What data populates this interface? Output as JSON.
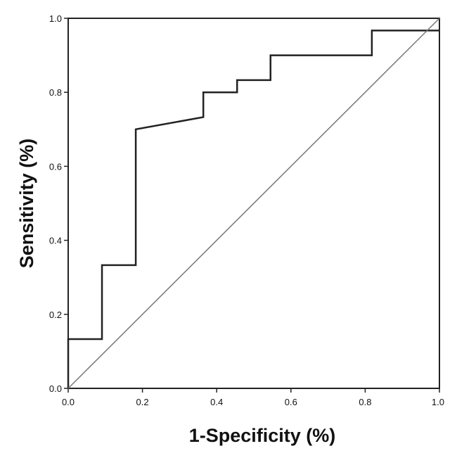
{
  "chart_data": {
    "type": "line",
    "title": "",
    "xlabel": "1-Specificity (%)",
    "ylabel": "Sensitivity (%)",
    "xlim": [
      0,
      1
    ],
    "ylim": [
      0,
      1
    ],
    "x_ticks": [
      "0.0",
      "0.2",
      "0.4",
      "0.6",
      "0.8",
      "1.0"
    ],
    "y_ticks": [
      "0.0",
      "0.2",
      "0.4",
      "0.6",
      "0.8",
      "1.0"
    ],
    "grid": false,
    "legend": "none",
    "series": [
      {
        "x": [
          0.0,
          0.0,
          0.091,
          0.091,
          0.182,
          0.182,
          0.364,
          0.364,
          0.455,
          0.455,
          0.545,
          0.545,
          0.818,
          0.818,
          1.0
        ],
        "y": [
          0.0,
          0.133,
          0.133,
          0.333,
          0.333,
          0.7,
          0.733,
          0.8,
          0.8,
          0.833,
          0.833,
          0.9,
          0.9,
          0.967,
          0.967
        ],
        "color": "#222222"
      },
      {
        "x": [
          0.0,
          1.0
        ],
        "y": [
          0.0,
          1.0
        ],
        "color": "#777777"
      }
    ]
  }
}
